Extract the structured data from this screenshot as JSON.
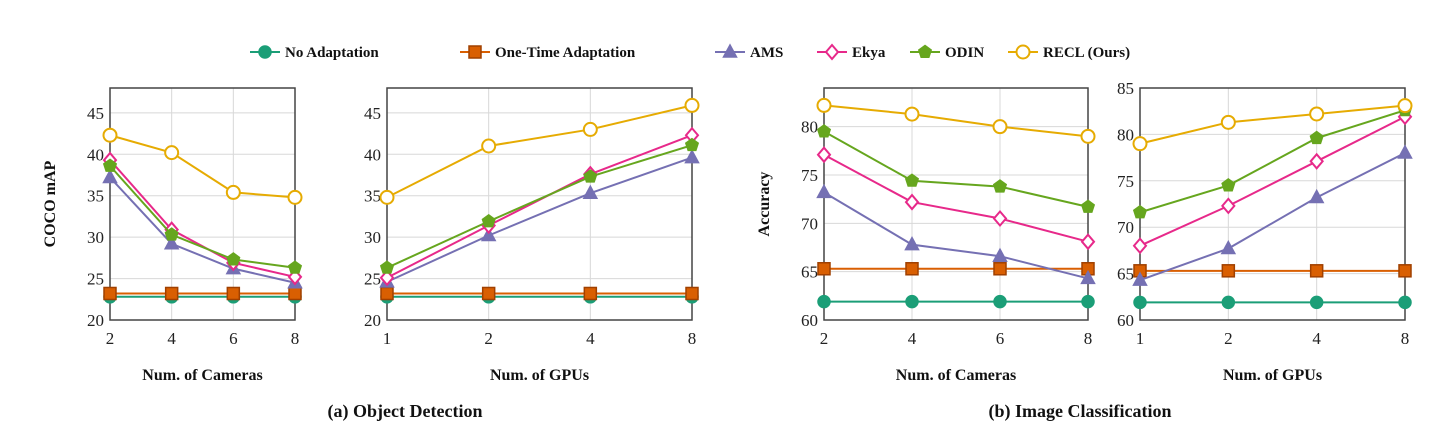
{
  "legend": [
    {
      "name": "No Adaptation",
      "color": "#1b9e77",
      "marker": "circle"
    },
    {
      "name": "One-Time Adaptation",
      "color": "#d95f02",
      "marker": "square"
    },
    {
      "name": "AMS",
      "color": "#7570b3",
      "marker": "triangle"
    },
    {
      "name": "Ekya",
      "color": "#e7298a",
      "marker": "diamond"
    },
    {
      "name": "ODIN",
      "color": "#66a61e",
      "marker": "pentagon"
    },
    {
      "name": "RECL (Ours)",
      "color": "#e6ab02",
      "marker": "circle-open"
    }
  ],
  "captions": [
    "(a) Object Detection",
    "(b) Image Classification"
  ],
  "chart_data": [
    {
      "type": "line",
      "ylabel": "COCO mAP",
      "xlabel": "Num. of Cameras",
      "categories": [
        "2",
        "4",
        "6",
        "8"
      ],
      "ylim": [
        20,
        48
      ],
      "yticks": [
        20,
        25,
        30,
        35,
        40,
        45
      ],
      "grid": true,
      "series": [
        {
          "name": "No Adaptation",
          "values": [
            22.8,
            22.8,
            22.8,
            22.8
          ]
        },
        {
          "name": "One-Time Adaptation",
          "values": [
            23.2,
            23.2,
            23.2,
            23.2
          ]
        },
        {
          "name": "AMS",
          "values": [
            37.2,
            29.2,
            26.2,
            24.5
          ]
        },
        {
          "name": "Ekya",
          "values": [
            39.3,
            30.9,
            26.9,
            25.2
          ]
        },
        {
          "name": "ODIN",
          "values": [
            38.6,
            30.3,
            27.3,
            26.3
          ]
        },
        {
          "name": "RECL (Ours)",
          "values": [
            42.3,
            40.2,
            35.4,
            34.8
          ]
        }
      ]
    },
    {
      "type": "line",
      "ylabel": "",
      "xlabel": "Num. of GPUs",
      "categories": [
        "1",
        "2",
        "4",
        "8"
      ],
      "ylim": [
        20,
        48
      ],
      "yticks": [
        20,
        25,
        30,
        35,
        40,
        45
      ],
      "grid": true,
      "series": [
        {
          "name": "No Adaptation",
          "values": [
            22.8,
            22.8,
            22.8,
            22.8
          ]
        },
        {
          "name": "One-Time Adaptation",
          "values": [
            23.2,
            23.2,
            23.2,
            23.2
          ]
        },
        {
          "name": "AMS",
          "values": [
            24.6,
            30.2,
            35.3,
            39.6
          ]
        },
        {
          "name": "Ekya",
          "values": [
            25.1,
            31.4,
            37.6,
            42.3
          ]
        },
        {
          "name": "ODIN",
          "values": [
            26.3,
            31.9,
            37.3,
            41.1
          ]
        },
        {
          "name": "RECL (Ours)",
          "values": [
            34.8,
            41.0,
            43.0,
            45.9
          ]
        }
      ]
    },
    {
      "type": "line",
      "ylabel": "Accuracy",
      "xlabel": "Num. of Cameras",
      "categories": [
        "2",
        "4",
        "6",
        "8"
      ],
      "ylim": [
        60,
        84
      ],
      "yticks": [
        60,
        65,
        70,
        75,
        80
      ],
      "grid": true,
      "series": [
        {
          "name": "No Adaptation",
          "values": [
            61.9,
            61.9,
            61.9,
            61.9
          ]
        },
        {
          "name": "One-Time Adaptation",
          "values": [
            65.3,
            65.3,
            65.3,
            65.3
          ]
        },
        {
          "name": "AMS",
          "values": [
            73.2,
            67.8,
            66.6,
            64.3
          ]
        },
        {
          "name": "Ekya",
          "values": [
            77.1,
            72.2,
            70.5,
            68.1
          ]
        },
        {
          "name": "ODIN",
          "values": [
            79.5,
            74.4,
            73.8,
            71.7
          ]
        },
        {
          "name": "RECL (Ours)",
          "values": [
            82.2,
            81.3,
            80.0,
            79.0
          ]
        }
      ]
    },
    {
      "type": "line",
      "ylabel": "",
      "xlabel": "Num. of GPUs",
      "categories": [
        "1",
        "2",
        "4",
        "8"
      ],
      "ylim": [
        60,
        85
      ],
      "yticks": [
        60,
        65,
        70,
        75,
        80,
        85
      ],
      "grid": true,
      "series": [
        {
          "name": "No Adaptation",
          "values": [
            61.9,
            61.9,
            61.9,
            61.9
          ]
        },
        {
          "name": "One-Time Adaptation",
          "values": [
            65.3,
            65.3,
            65.3,
            65.3
          ]
        },
        {
          "name": "AMS",
          "values": [
            64.3,
            67.7,
            73.2,
            78.0
          ]
        },
        {
          "name": "Ekya",
          "values": [
            68.0,
            72.3,
            77.1,
            81.9
          ]
        },
        {
          "name": "ODIN",
          "values": [
            71.6,
            74.5,
            79.6,
            82.6
          ]
        },
        {
          "name": "RECL (Ours)",
          "values": [
            79.0,
            81.3,
            82.2,
            83.1
          ]
        }
      ]
    }
  ]
}
